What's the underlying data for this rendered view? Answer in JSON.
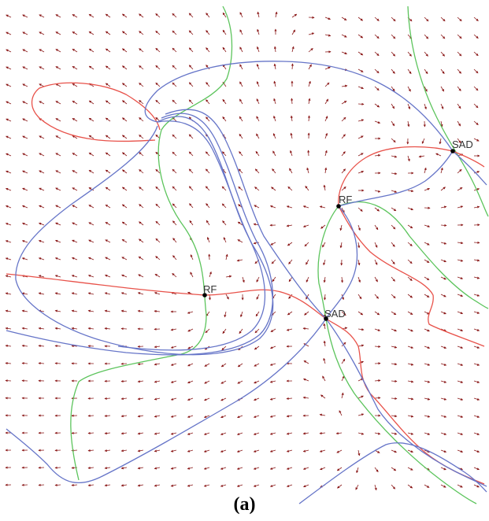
{
  "figure": {
    "caption": "(a)"
  },
  "critical_points": [
    {
      "label": "SAD",
      "type": "saddle"
    },
    {
      "label": "RF",
      "type": "repelling-focus"
    },
    {
      "label": "RF",
      "type": "repelling-focus"
    },
    {
      "label": "SAD",
      "type": "saddle"
    }
  ],
  "colors": {
    "arrow": "#8b1a1a",
    "separatrix": "#6675c8",
    "red_curve": "#e8524a",
    "green_curve": "#5cc45c",
    "point": "#000000"
  }
}
